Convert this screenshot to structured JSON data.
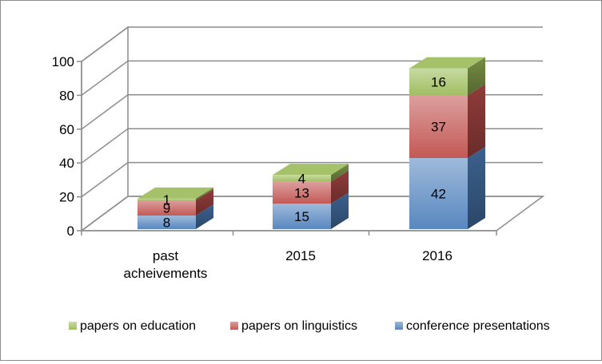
{
  "chart_data": {
    "type": "bar",
    "stacked": true,
    "three_d": true,
    "categories": [
      [
        "past",
        "acheivements"
      ],
      [
        "2015"
      ],
      [
        "2016"
      ]
    ],
    "series": [
      {
        "name": "conference presentations",
        "color": "#4f81bd",
        "values": [
          8,
          15,
          42
        ]
      },
      {
        "name": "papers on linguistics",
        "color": "#c0504d",
        "values": [
          9,
          13,
          37
        ]
      },
      {
        "name": "papers on education",
        "color": "#9bbb59",
        "values": [
          1,
          4,
          16
        ]
      }
    ],
    "yticks": [
      0,
      20,
      40,
      60,
      80,
      100
    ],
    "ylim": [
      0,
      100
    ],
    "grid": true,
    "legend_position": "bottom",
    "legend_order": [
      "papers on education",
      "papers on linguistics",
      "conference presentations"
    ]
  }
}
